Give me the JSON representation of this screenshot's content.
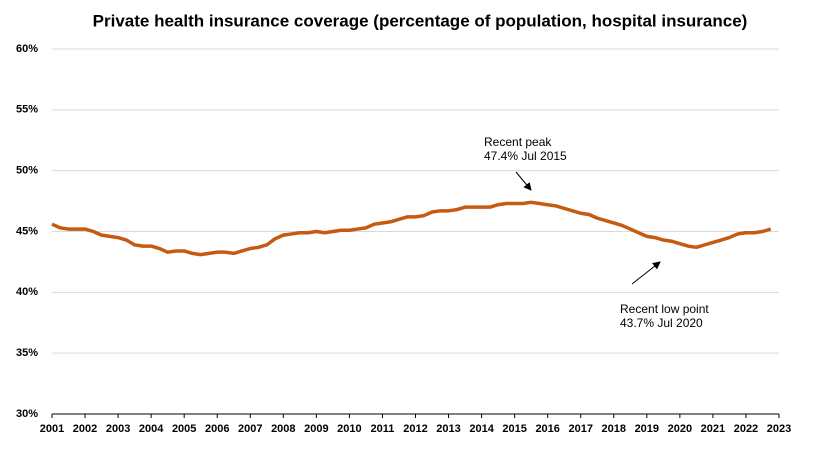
{
  "chart_data": {
    "type": "line",
    "title": "Private health insurance coverage (percentage of population, hospital insurance)",
    "x": [
      2001,
      2001.25,
      2001.5,
      2001.75,
      2002,
      2002.25,
      2002.5,
      2002.75,
      2003,
      2003.25,
      2003.5,
      2003.75,
      2004,
      2004.25,
      2004.5,
      2004.75,
      2005,
      2005.25,
      2005.5,
      2005.75,
      2006,
      2006.25,
      2006.5,
      2006.75,
      2007,
      2007.25,
      2007.5,
      2007.75,
      2008,
      2008.25,
      2008.5,
      2008.75,
      2009,
      2009.25,
      2009.5,
      2009.75,
      2010,
      2010.25,
      2010.5,
      2010.75,
      2011,
      2011.25,
      2011.5,
      2011.75,
      2012,
      2012.25,
      2012.5,
      2012.75,
      2013,
      2013.25,
      2013.5,
      2013.75,
      2014,
      2014.25,
      2014.5,
      2014.75,
      2015,
      2015.25,
      2015.5,
      2015.75,
      2016,
      2016.25,
      2016.5,
      2016.75,
      2017,
      2017.25,
      2017.5,
      2017.75,
      2018,
      2018.25,
      2018.5,
      2018.75,
      2019,
      2019.25,
      2019.5,
      2019.75,
      2020,
      2020.25,
      2020.5,
      2020.75,
      2021,
      2021.25,
      2021.5,
      2021.75,
      2022,
      2022.25,
      2022.5,
      2022.75
    ],
    "series": [
      {
        "name": "Hospital insurance coverage",
        "color": "#c55a11",
        "values": [
          45.6,
          45.3,
          45.2,
          45.2,
          45.2,
          45.0,
          44.7,
          44.6,
          44.5,
          44.3,
          43.9,
          43.8,
          43.8,
          43.6,
          43.3,
          43.4,
          43.4,
          43.2,
          43.1,
          43.2,
          43.3,
          43.3,
          43.2,
          43.4,
          43.6,
          43.7,
          43.9,
          44.4,
          44.7,
          44.8,
          44.9,
          44.9,
          45.0,
          44.9,
          45.0,
          45.1,
          45.1,
          45.2,
          45.3,
          45.6,
          45.7,
          45.8,
          46.0,
          46.2,
          46.2,
          46.3,
          46.6,
          46.7,
          46.7,
          46.8,
          47.0,
          47.0,
          47.0,
          47.0,
          47.2,
          47.3,
          47.3,
          47.3,
          47.4,
          47.3,
          47.2,
          47.1,
          46.9,
          46.7,
          46.5,
          46.4,
          46.1,
          45.9,
          45.7,
          45.5,
          45.2,
          44.9,
          44.6,
          44.5,
          44.3,
          44.2,
          44.0,
          43.8,
          43.7,
          43.9,
          44.1,
          44.3,
          44.5,
          44.8,
          44.9,
          44.9,
          45.0,
          45.2
        ]
      }
    ],
    "xlim": [
      2001,
      2023
    ],
    "xticks": [
      2001,
      2002,
      2003,
      2004,
      2005,
      2006,
      2007,
      2008,
      2009,
      2010,
      2011,
      2012,
      2013,
      2014,
      2015,
      2016,
      2017,
      2018,
      2019,
      2020,
      2021,
      2022,
      2023
    ],
    "ylim": [
      30,
      60
    ],
    "yticks": [
      {
        "value": 30,
        "label": "30%"
      },
      {
        "value": 35,
        "label": "35%"
      },
      {
        "value": 40,
        "label": "40%"
      },
      {
        "value": 45,
        "label": "45%"
      },
      {
        "value": 50,
        "label": "50%"
      },
      {
        "value": 55,
        "label": "55%"
      },
      {
        "value": 60,
        "label": "60%"
      }
    ],
    "grid": true,
    "annotations": [
      {
        "lines": [
          "Recent peak",
          "47.4% Jul 2015"
        ]
      },
      {
        "lines": [
          "Recent low point",
          "43.7% Jul 2020"
        ]
      }
    ]
  }
}
